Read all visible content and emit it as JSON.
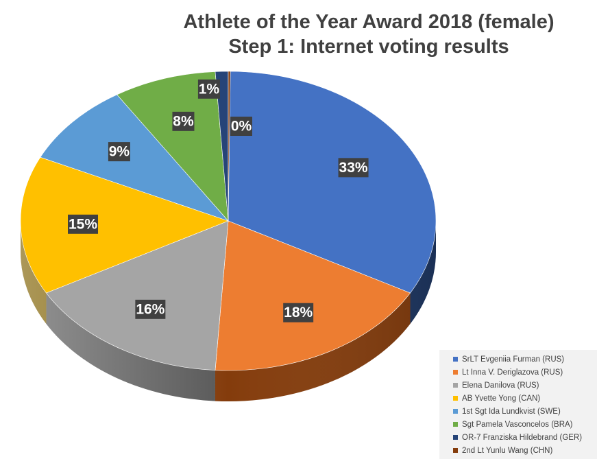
{
  "chart_data": {
    "type": "pie",
    "title": "Athlete of the Year Award 2018 (female)",
    "subtitle": "Step 1: Internet voting results",
    "slices": [
      {
        "label": "SrLT Evgeniia Furman (RUS)",
        "value": 33,
        "data_label": "33%",
        "color": "#4472c4",
        "side_color": "#1f3864"
      },
      {
        "label": "Lt Inna V. Deriglazova (RUS)",
        "value": 18,
        "data_label": "18%",
        "color": "#ed7d31",
        "side_color": "#843c0c"
      },
      {
        "label": "Elena Danilova (RUS)",
        "value": 16,
        "data_label": "16%",
        "color": "#a5a5a5",
        "side_color": "#595959"
      },
      {
        "label": "AB Yvette Yong (CAN)",
        "value": 15,
        "data_label": "15%",
        "color": "#ffc000",
        "side_color": "#7f6000"
      },
      {
        "label": "1st Sgt Ida Lundkvist (SWE)",
        "value": 9,
        "data_label": "9%",
        "color": "#5b9bd5",
        "side_color": "#1f4e79"
      },
      {
        "label": "Sgt Pamela Vasconcelos (BRA)",
        "value": 8,
        "data_label": "8%",
        "color": "#70ad47",
        "side_color": "#375623"
      },
      {
        "label": "OR-7 Franziska Hildebrand (GER)",
        "value": 1,
        "data_label": "1%",
        "color": "#264478",
        "side_color": "#111f36"
      },
      {
        "label": "2nd Lt Yunlu Wang (CHN)",
        "value": 0,
        "data_label": "0%",
        "color": "#843c0c",
        "side_color": "#5c2a08"
      }
    ],
    "legend_position": "bottom-right"
  }
}
